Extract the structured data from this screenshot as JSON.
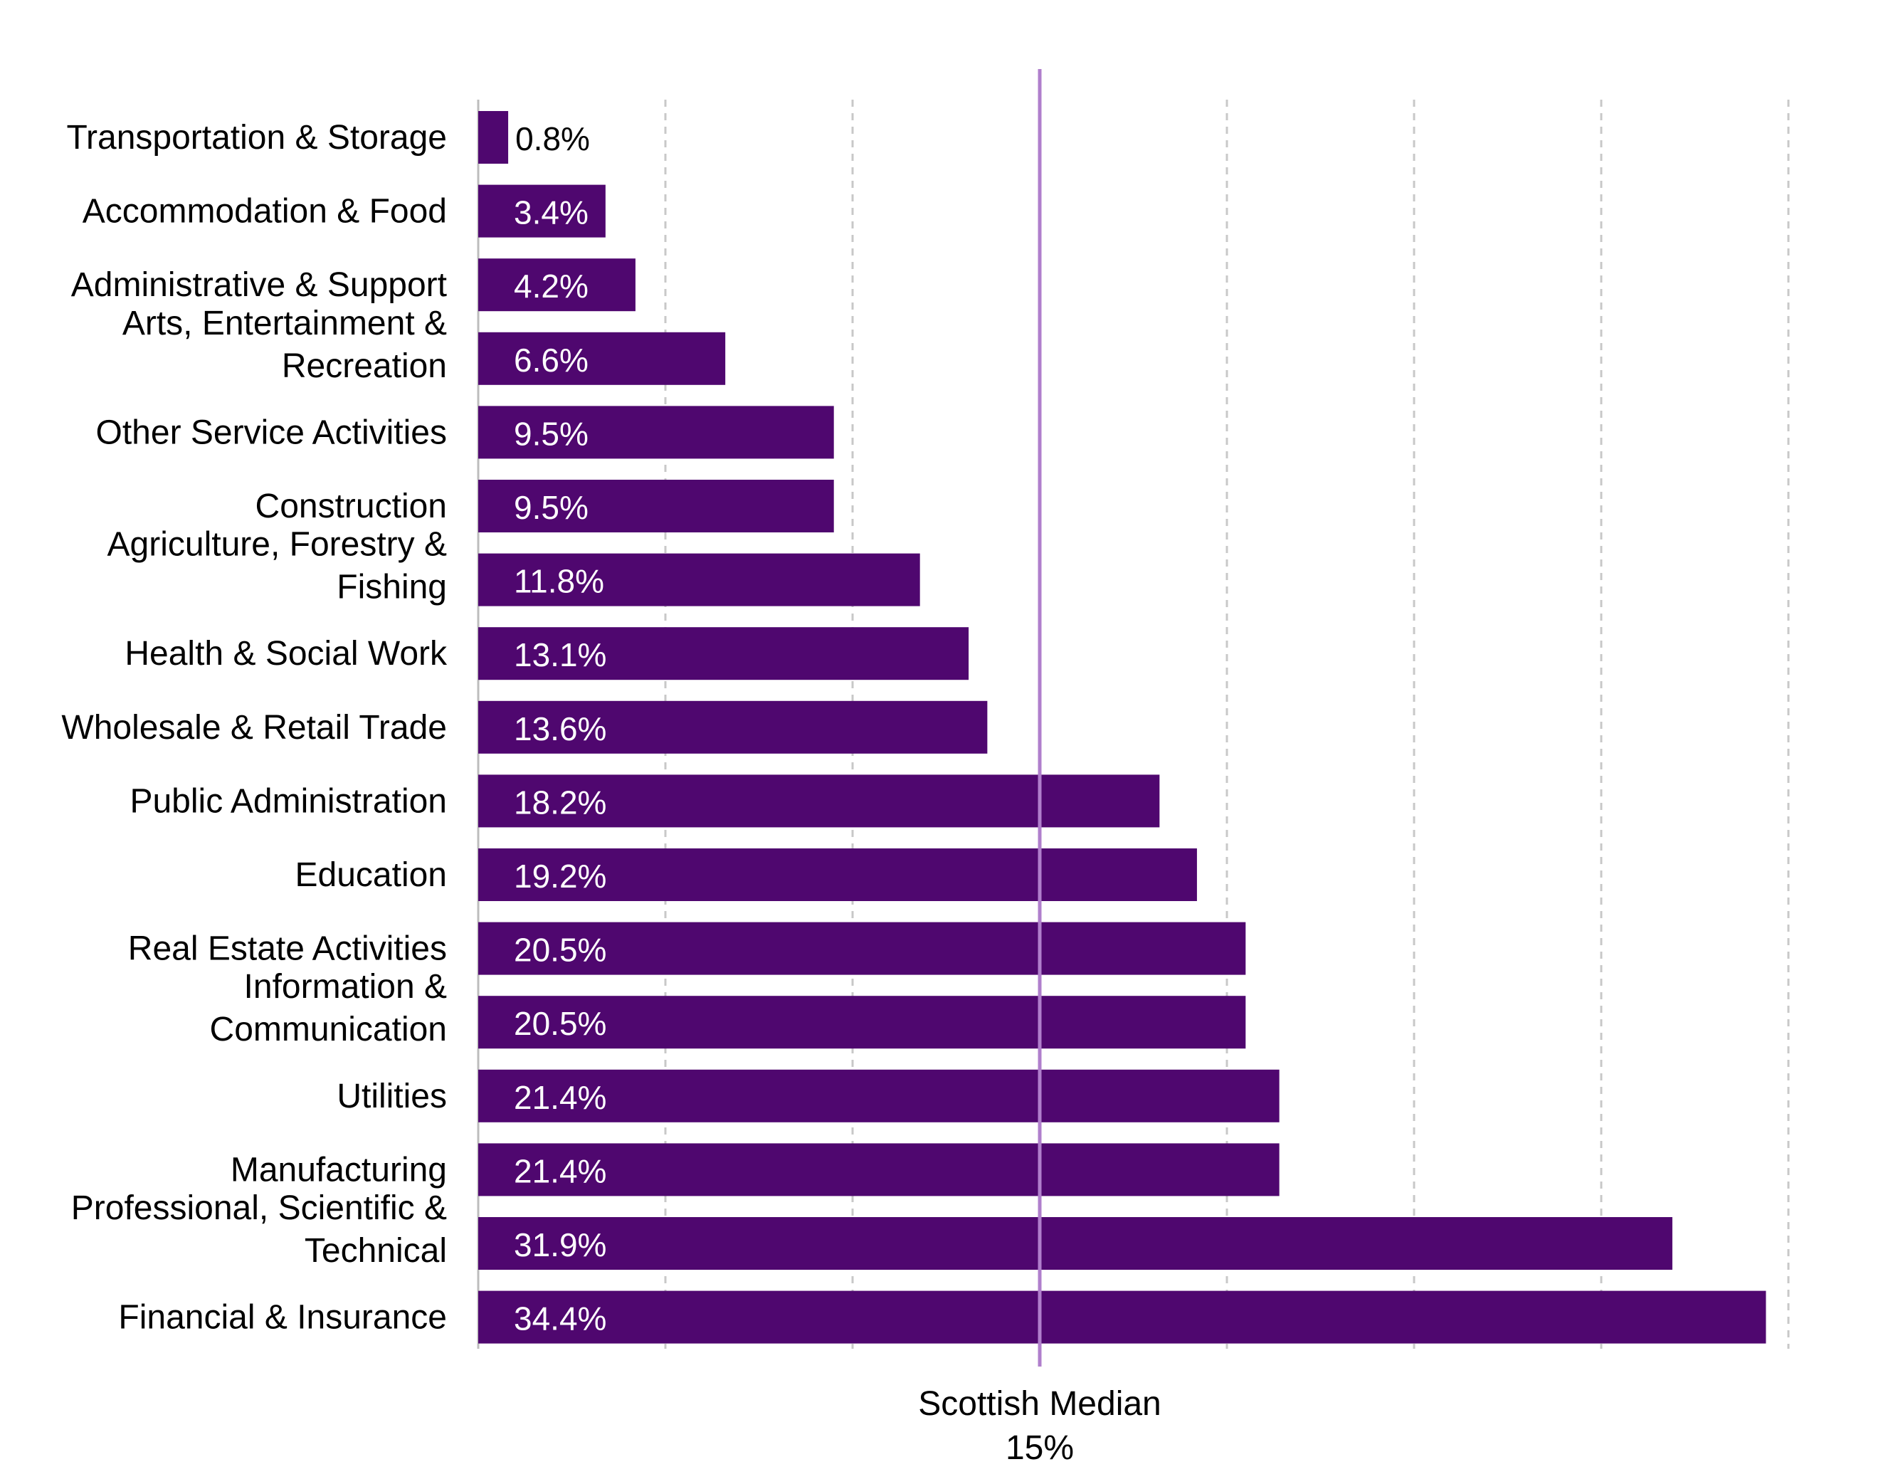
{
  "colors": {
    "bar": "#4f076f",
    "median_line": "#b07fcc",
    "grid": "#c8c8c8",
    "axis": "#bdbdbd",
    "label_inside": "#ffffff",
    "label_outside": "#000000"
  },
  "chart_data": {
    "type": "bar",
    "orientation": "horizontal",
    "categories": [
      "Transportation & Storage",
      "Accommodation & Food",
      "Administrative & Support",
      "Arts, Entertainment & Recreation",
      "Other Service Activities",
      "Construction",
      "Agriculture, Forestry & Fishing",
      "Health & Social Work",
      "Wholesale & Retail Trade",
      "Public Administration",
      "Education",
      "Real Estate Activities",
      "Information & Communication",
      "Utilities",
      "Manufacturing",
      "Professional, Scientific & Technical",
      "Financial & Insurance"
    ],
    "category_label_lines": [
      [
        "Transportation & Storage"
      ],
      [
        "Accommodation & Food"
      ],
      [
        "Administrative & Support"
      ],
      [
        "Arts, Entertainment &",
        "Recreation"
      ],
      [
        "Other Service Activities"
      ],
      [
        "Construction"
      ],
      [
        "Agriculture, Forestry &",
        "Fishing"
      ],
      [
        "Health & Social Work"
      ],
      [
        "Wholesale & Retail Trade"
      ],
      [
        "Public Administration"
      ],
      [
        "Education"
      ],
      [
        "Real Estate Activities"
      ],
      [
        "Information &",
        "Communication"
      ],
      [
        "Utilities"
      ],
      [
        "Manufacturing"
      ],
      [
        "Professional, Scientific &",
        "Technical"
      ],
      [
        "Financial & Insurance"
      ]
    ],
    "values": [
      0.8,
      3.4,
      4.2,
      6.6,
      9.5,
      9.5,
      11.8,
      13.1,
      13.6,
      18.2,
      19.2,
      20.5,
      20.5,
      21.4,
      21.4,
      31.9,
      34.4
    ],
    "data_labels": [
      "0.8%",
      "3.4%",
      "4.2%",
      "6.6%",
      "9.5%",
      "9.5%",
      "11.8%",
      "13.1%",
      "13.6%",
      "18.2%",
      "19.2%",
      "20.5%",
      "20.5%",
      "21.4%",
      "21.4%",
      "31.9%",
      "34.4%"
    ],
    "xlim": [
      0,
      35
    ],
    "grid": true,
    "grid_step": 5,
    "reference_line": {
      "value": 15,
      "label": "Scottish Median",
      "value_label": "15%"
    }
  }
}
